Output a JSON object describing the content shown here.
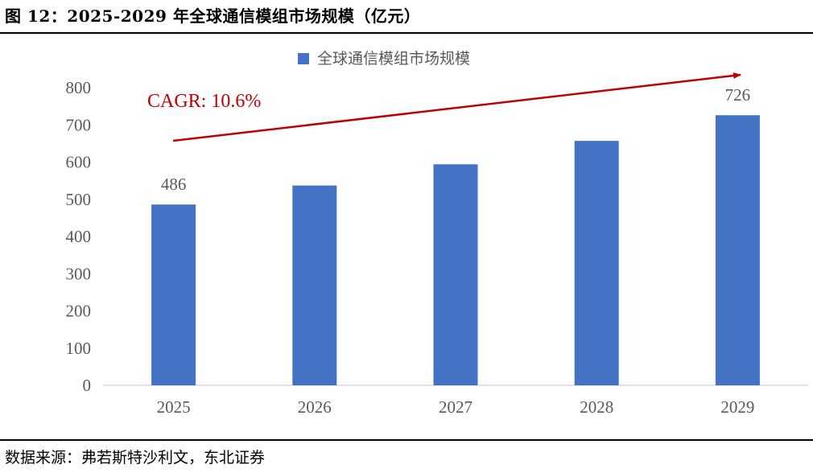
{
  "header": {
    "title": "图 12：2025-2029 年全球通信模组市场规模（亿元）"
  },
  "footer": {
    "source": "数据来源：弗若斯特沙利文，东北证券"
  },
  "colors": {
    "bar": "#4472C4",
    "arrow": "#C00000",
    "axis": "#D9D9D9",
    "text": "#595959"
  },
  "chart_data": {
    "type": "bar",
    "categories": [
      "2025",
      "2026",
      "2027",
      "2028",
      "2029"
    ],
    "series": [
      {
        "name": "全球通信模组市场规模",
        "values": [
          486,
          537,
          594,
          657,
          726
        ]
      }
    ],
    "data_labels": [
      {
        "category": "2025",
        "text": "486"
      },
      {
        "category": "2029",
        "text": "726"
      }
    ],
    "annotation": "CAGR: 10.6%",
    "ylim": [
      0,
      800
    ],
    "yticks": [
      0,
      100,
      200,
      300,
      400,
      500,
      600,
      700,
      800
    ],
    "legend": "top-center",
    "grid": false,
    "title": "",
    "xlabel": "",
    "ylabel": ""
  }
}
